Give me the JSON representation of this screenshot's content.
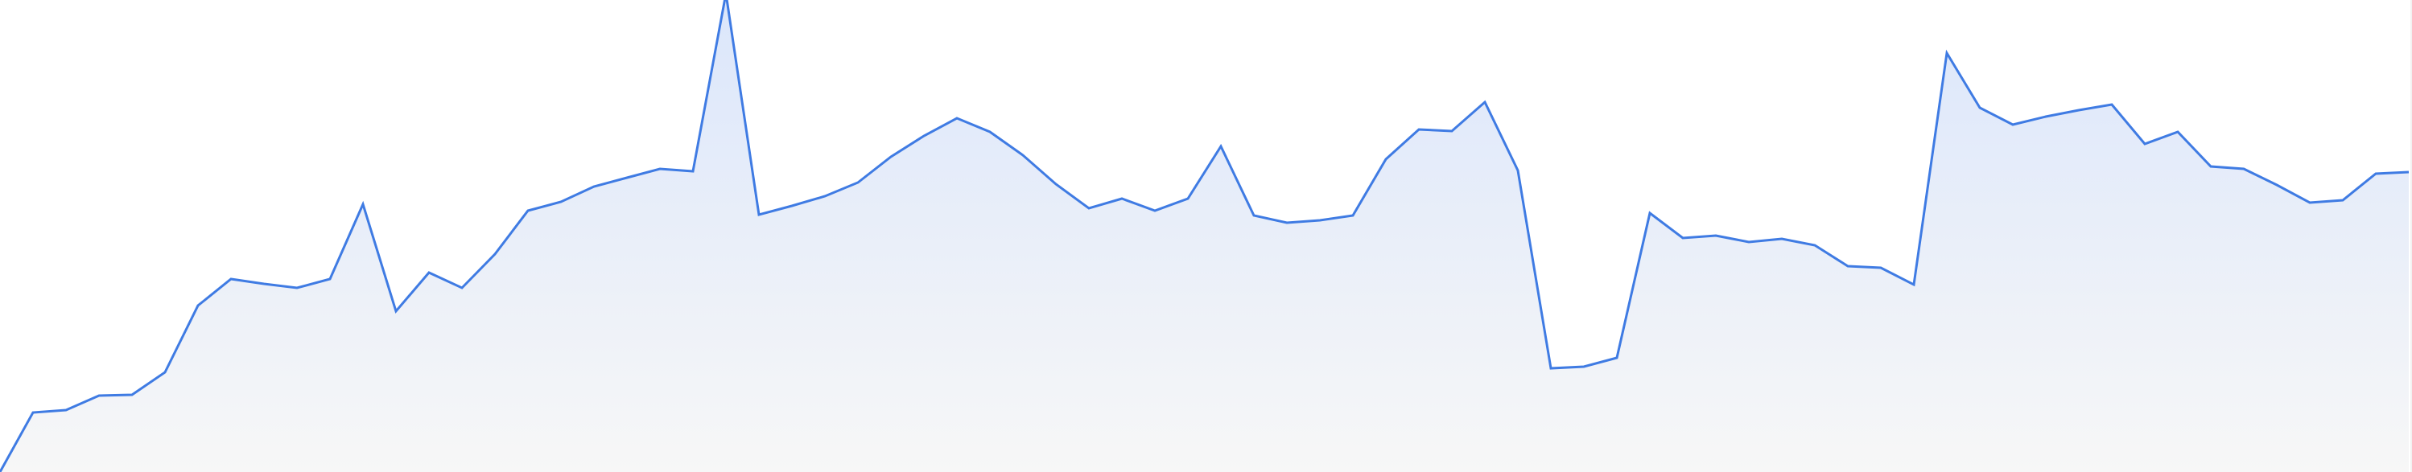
{
  "chart_data": {
    "type": "area",
    "title": "",
    "xlabel": "",
    "ylabel": "",
    "grid": false,
    "legend": "none",
    "ylim": [
      0,
      587
    ],
    "colors": {
      "line": "#3f7be3",
      "fill_top": "#dbe6fb",
      "fill_bottom": "#f7f7f7",
      "background": "#ffffff"
    },
    "series": [
      {
        "values": [
          0,
          74,
          77,
          95,
          96,
          124,
          207,
          240,
          234,
          229,
          240,
          333,
          200,
          248,
          229,
          271,
          325,
          336,
          355,
          366,
          377,
          374,
          595,
          320,
          331,
          343,
          360,
          392,
          418,
          440,
          423,
          394,
          358,
          328,
          340,
          325,
          340,
          405,
          319,
          310,
          313,
          319,
          389,
          426,
          424,
          460,
          375,
          129,
          131,
          142,
          322,
          291,
          294,
          286,
          290,
          282,
          256,
          254,
          233,
          521,
          453,
          432,
          442,
          450,
          457,
          408,
          423,
          380,
          377,
          357,
          335,
          338,
          371,
          373
        ]
      }
    ]
  }
}
